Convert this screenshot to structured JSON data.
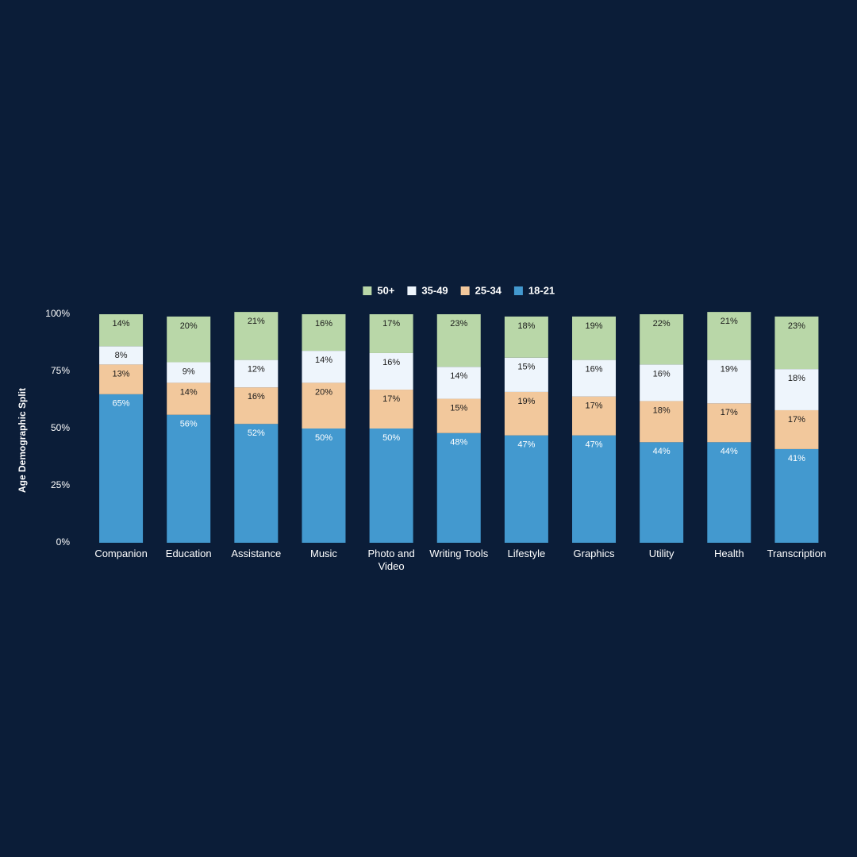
{
  "chart_data": {
    "type": "stacked_bar",
    "y_axis_label": "Age Demographic Split",
    "categories": [
      "Companion",
      "Education",
      "Assistance",
      "Music",
      "Photo and Video",
      "Writing Tools",
      "Lifestyle",
      "Graphics",
      "Utility",
      "Health",
      "Transcription"
    ],
    "series": [
      {
        "name": "18-21",
        "color": "#4399cf",
        "values": [
          65,
          56,
          52,
          50,
          50,
          48,
          47,
          47,
          44,
          44,
          41
        ],
        "value_labels": [
          "65%",
          "56%",
          "52%",
          "50%",
          "50%",
          "48%",
          "47%",
          "47%",
          "44%",
          "44%",
          "41%"
        ]
      },
      {
        "name": "25-34",
        "color": "#f2c89c",
        "values": [
          13,
          14,
          16,
          20,
          17,
          15,
          19,
          17,
          18,
          17,
          17
        ],
        "value_labels": [
          "13%",
          "14%",
          "16%",
          "20%",
          "17%",
          "15%",
          "19%",
          "17%",
          "18%",
          "17%",
          "17%"
        ]
      },
      {
        "name": "35-49",
        "color": "#eef5fc",
        "values": [
          8,
          9,
          12,
          14,
          16,
          14,
          15,
          16,
          16,
          19,
          18
        ],
        "value_labels": [
          "8%",
          "9%",
          "12%",
          "14%",
          "16%",
          "14%",
          "15%",
          "16%",
          "16%",
          "19%",
          "18%"
        ]
      },
      {
        "name": "50+",
        "color": "#b9d7a8",
        "values": [
          14,
          20,
          21,
          16,
          17,
          23,
          18,
          19,
          22,
          21,
          23
        ],
        "value_labels": [
          "14%",
          "20%",
          "21%",
          "16%",
          "17%",
          "23%",
          "18%",
          "19%",
          "22%",
          "21%",
          "23%"
        ]
      }
    ],
    "ylim": [
      0,
      100
    ],
    "yticks": [
      {
        "value": 0,
        "label": "0%"
      },
      {
        "value": 25,
        "label": "25%"
      },
      {
        "value": 50,
        "label": "50%"
      },
      {
        "value": 75,
        "label": "75%"
      },
      {
        "value": 100,
        "label": "100%"
      }
    ],
    "legend": "top"
  }
}
